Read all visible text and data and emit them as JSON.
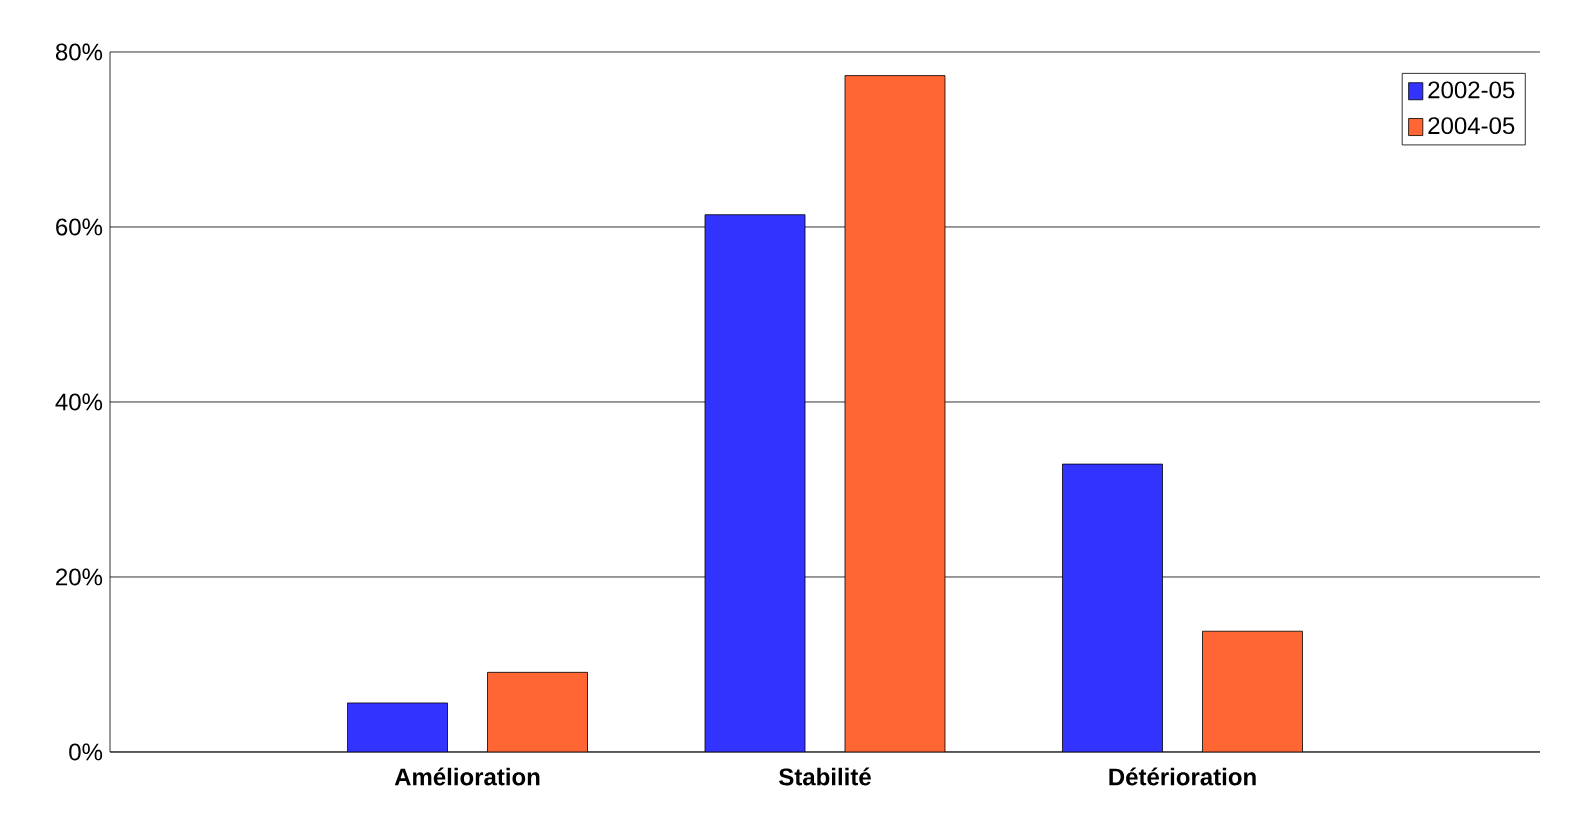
{
  "chart_data": {
    "type": "bar",
    "categories": [
      "Amélioration",
      "Stabilité",
      "Détérioration"
    ],
    "series": [
      {
        "name": "2002-05",
        "color": "#3333ff",
        "values": [
          5.6,
          61.4,
          32.9
        ]
      },
      {
        "name": "2004-05",
        "color": "#ff6633",
        "values": [
          9.1,
          77.3,
          13.8
        ]
      }
    ],
    "ylim": [
      0,
      80
    ],
    "yticks": [
      {
        "value": 0,
        "label": "0%"
      },
      {
        "value": 20,
        "label": "20%"
      },
      {
        "value": 40,
        "label": "40%"
      },
      {
        "value": 60,
        "label": "60%"
      },
      {
        "value": 80,
        "label": "80%"
      }
    ],
    "grid": "y",
    "legend": "top right"
  }
}
